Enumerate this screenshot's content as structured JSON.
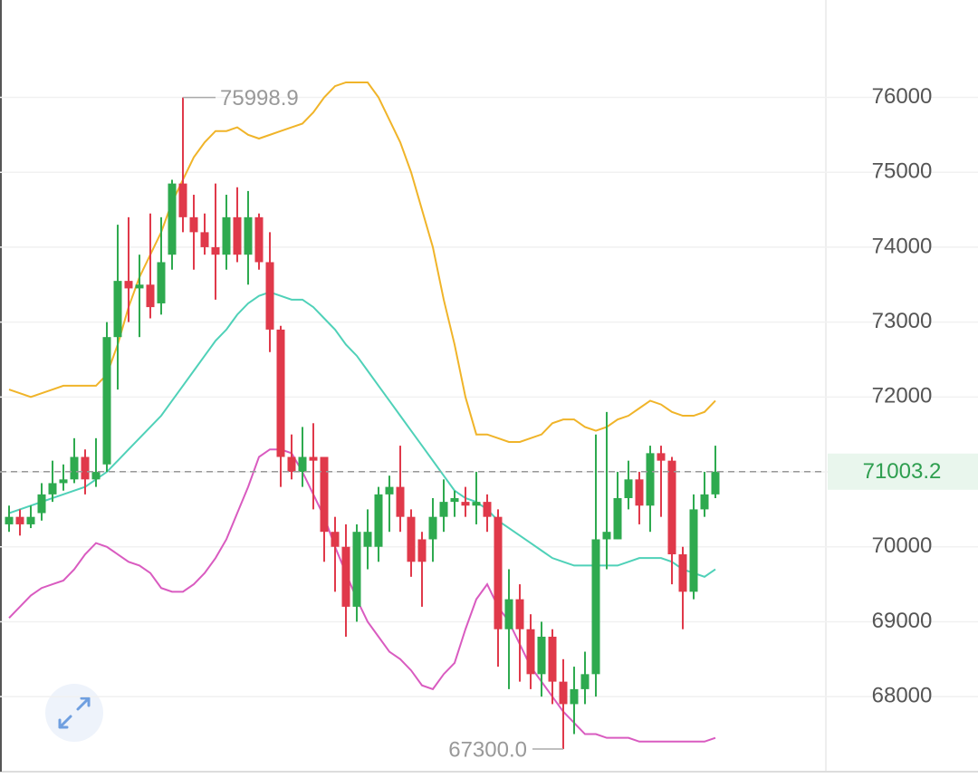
{
  "chart_data": {
    "type": "candlestick",
    "up_color": "#2eaa4f",
    "down_color": "#e0394a",
    "open": [
      70300,
      70400,
      70300,
      70450,
      70700,
      70850,
      70900,
      71200,
      70900,
      71100,
      72800,
      73550,
      73450,
      73500,
      73250,
      73900,
      74850,
      74400,
      74200,
      74000,
      73900,
      74400,
      73900,
      74400,
      73800,
      72900,
      71200,
      71000,
      71200,
      71200,
      70200,
      70000,
      69200,
      70000,
      70000,
      70700,
      70800,
      70400,
      70100,
      70100,
      70400,
      70600,
      70600,
      70550,
      70600,
      70400,
      68900,
      69300,
      68900,
      68300,
      68800,
      68200,
      67900,
      68100,
      68300,
      70100,
      70100,
      70650,
      70900,
      70550,
      71250,
      71150,
      69900,
      69400,
      70500,
      70700
    ],
    "high": [
      70550,
      70500,
      70550,
      70850,
      71150,
      71100,
      71450,
      71300,
      71450,
      73000,
      74300,
      74400,
      73900,
      74450,
      74400,
      74900,
      75998.9,
      74700,
      74450,
      74850,
      74700,
      74800,
      74750,
      74450,
      74200,
      72950,
      71500,
      71600,
      71650,
      71200,
      70400,
      70300,
      70300,
      70500,
      70800,
      70950,
      71350,
      70500,
      70200,
      70650,
      70900,
      70750,
      70800,
      71000,
      70700,
      70500,
      69700,
      69500,
      69100,
      69000,
      68900,
      68500,
      68400,
      68600,
      71500,
      71800,
      71000,
      71150,
      71000,
      71350,
      71350,
      71200,
      70000,
      70700,
      71000,
      71350
    ],
    "low": [
      70200,
      70150,
      70250,
      70350,
      70600,
      70750,
      70850,
      70700,
      70800,
      71000,
      72100,
      73000,
      72800,
      73050,
      73100,
      73700,
      74200,
      73700,
      73900,
      73300,
      73700,
      73800,
      73500,
      73700,
      72600,
      70800,
      70900,
      70800,
      70500,
      69800,
      69400,
      68800,
      69000,
      69700,
      69800,
      70200,
      70200,
      69600,
      69200,
      69800,
      70200,
      70400,
      70400,
      70300,
      70200,
      68400,
      68100,
      68200,
      68100,
      68000,
      67900,
      67300,
      67500,
      67900,
      68000,
      69700,
      70100,
      70500,
      70300,
      70200,
      70400,
      69500,
      68900,
      69300,
      70400,
      70650
    ],
    "close": [
      70400,
      70300,
      70400,
      70700,
      70850,
      70900,
      71200,
      70900,
      71000,
      72800,
      73550,
      73450,
      73500,
      73200,
      73800,
      74850,
      74400,
      74200,
      74000,
      73900,
      74400,
      73900,
      74400,
      73800,
      72900,
      71200,
      71000,
      71200,
      71150,
      70200,
      70000,
      69200,
      70200,
      70200,
      70700,
      70800,
      70400,
      69800,
      69800,
      70400,
      70600,
      70650,
      70550,
      70600,
      70400,
      68900,
      69300,
      68900,
      68300,
      68800,
      68200,
      67900,
      68100,
      68300,
      70100,
      70200,
      70650,
      70900,
      70550,
      71250,
      71150,
      69900,
      69400,
      70500,
      70700,
      71003.2
    ],
    "lines": [
      {
        "color": "#f0b429",
        "values": [
          72100,
          72050,
          72000,
          72050,
          72100,
          72150,
          72150,
          72150,
          72150,
          72300,
          72700,
          73200,
          73600,
          73900,
          74200,
          74600,
          74900,
          75200,
          75400,
          75550,
          75550,
          75600,
          75500,
          75450,
          75500,
          75550,
          75600,
          75650,
          75800,
          76000,
          76150,
          76200,
          76200,
          76200,
          76000,
          75700,
          75400,
          75000,
          74500,
          74000,
          73300,
          72700,
          72000,
          71500,
          71500,
          71450,
          71400,
          71400,
          71450,
          71500,
          71650,
          71700,
          71700,
          71600,
          71550,
          71600,
          71700,
          71750,
          71850,
          71950,
          71900,
          71800,
          71750,
          71750,
          71800,
          71950
        ]
      },
      {
        "color": "#4fd1b8",
        "values": [
          70450,
          70500,
          70550,
          70600,
          70650,
          70700,
          70750,
          70800,
          70900,
          71000,
          71150,
          71300,
          71450,
          71600,
          71750,
          71950,
          72150,
          72350,
          72550,
          72750,
          72900,
          73100,
          73250,
          73350,
          73400,
          73350,
          73300,
          73300,
          73200,
          73050,
          72900,
          72700,
          72550,
          72350,
          72150,
          71950,
          71750,
          71550,
          71350,
          71150,
          70950,
          70750,
          70650,
          70600,
          70500,
          70350,
          70250,
          70150,
          70050,
          69950,
          69850,
          69800,
          69750,
          69750,
          69750,
          69750,
          69750,
          69800,
          69850,
          69850,
          69850,
          69800,
          69700,
          69650,
          69600,
          69700
        ]
      },
      {
        "color": "#d95bc0",
        "values": [
          69050,
          69200,
          69350,
          69450,
          69500,
          69550,
          69700,
          69900,
          70050,
          70000,
          69900,
          69800,
          69750,
          69650,
          69450,
          69400,
          69400,
          69500,
          69650,
          69850,
          70100,
          70450,
          70800,
          71200,
          71300,
          71300,
          71250,
          71000,
          70700,
          70400,
          70000,
          69650,
          69300,
          69000,
          68800,
          68600,
          68500,
          68350,
          68150,
          68100,
          68300,
          68450,
          68900,
          69300,
          69500,
          69200,
          69000,
          68700,
          68400,
          68200,
          68000,
          67800,
          67650,
          67500,
          67500,
          67450,
          67450,
          67450,
          67400,
          67400,
          67400,
          67400,
          67400,
          67400,
          67400,
          67450
        ]
      }
    ],
    "ylim": [
      66950,
      77300
    ],
    "yticks": [
      68000,
      69000,
      70000,
      71000,
      72000,
      73000,
      74000,
      75000,
      76000
    ],
    "grid": true,
    "last_price": 71003.2,
    "high_label": 75998.9,
    "low_label": {
      "value": 67300,
      "label": "67300.0"
    }
  }
}
